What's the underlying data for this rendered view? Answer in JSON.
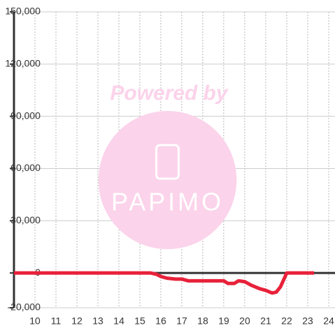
{
  "chart_data": {
    "type": "line",
    "x": [
      9,
      15.5,
      15.8,
      16,
      16.3,
      16.7,
      17,
      17.3,
      18,
      19,
      19.2,
      19.5,
      19.7,
      20,
      20.3,
      20.7,
      21,
      21.3,
      21.5,
      21.7,
      22,
      22.3,
      23.3
    ],
    "series": [
      {
        "color": "#e8213a",
        "values": [
          0,
          0,
          -800,
          -2000,
          -3000,
          -3500,
          -3500,
          -4500,
          -4500,
          -4500,
          -6000,
          -6000,
          -4500,
          -5000,
          -7000,
          -9000,
          -10000,
          -11500,
          -11000,
          -8000,
          0,
          0,
          0
        ]
      }
    ],
    "xlim": [
      9,
      24.3
    ],
    "xticks": [
      10,
      11,
      12,
      13,
      14,
      15,
      16,
      17,
      18,
      19,
      20,
      21,
      22,
      23,
      24
    ],
    "ylim": [
      -20000,
      150000
    ],
    "yticks": [
      {
        "value": -20000,
        "label": "-20,000"
      },
      0,
      {
        "value": 30000,
        "label": "30,000"
      },
      {
        "value": 60000,
        "label": "60,000"
      },
      {
        "value": 90000,
        "label": "90,000"
      },
      {
        "value": 120000,
        "label": "120,000"
      },
      {
        "value": 150000,
        "label": "150,000"
      }
    ],
    "grid": true
  },
  "watermark": {
    "text": "Powered by",
    "logo": "PAPIMO"
  }
}
